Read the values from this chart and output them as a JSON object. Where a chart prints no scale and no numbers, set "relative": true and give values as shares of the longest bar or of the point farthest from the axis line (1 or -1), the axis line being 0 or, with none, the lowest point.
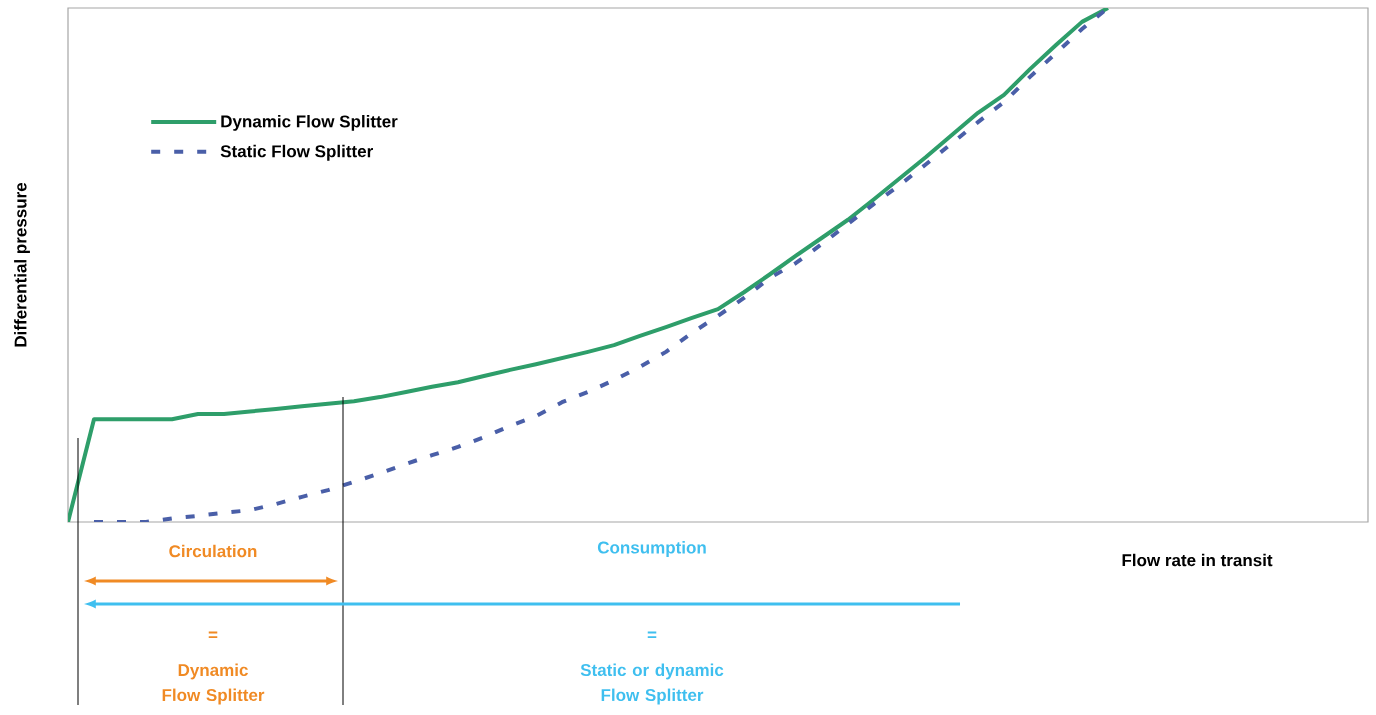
{
  "chart_data": {
    "type": "line",
    "relative": true,
    "xlabel": "Flow rate in transit",
    "ylabel": "Differential pressure",
    "legend": "top left",
    "categories": [
      null,
      null,
      null,
      null,
      null,
      null,
      null,
      null,
      null,
      null,
      null,
      null,
      null,
      null,
      null,
      null,
      null,
      null,
      null,
      null,
      null,
      null,
      null,
      null,
      null,
      null,
      null,
      null,
      null,
      null,
      null,
      null,
      null,
      null,
      null,
      null,
      null,
      null,
      null,
      null,
      null,
      null,
      null,
      null,
      null,
      null,
      null,
      null,
      null,
      null,
      null
    ],
    "series": [
      {
        "name": "Dynamic Flow Splitter",
        "color": "#2e9e6a",
        "line_style": "solid",
        "values": [
          0,
          0.2,
          0.2,
          0.2,
          0.2,
          0.21,
          0.21,
          0.215,
          0.22,
          0.225,
          0.23,
          0.235,
          0.243,
          0.253,
          0.263,
          0.272,
          0.284,
          0.296,
          0.307,
          0.319,
          0.331,
          0.344,
          0.362,
          0.379,
          0.397,
          0.414,
          0.447,
          0.482,
          0.518,
          0.553,
          0.588,
          0.628,
          0.669,
          0.71,
          0.753,
          0.796,
          0.831,
          0.881,
          0.928,
          0.973,
          1,
          null,
          null,
          null,
          null,
          null,
          null,
          null,
          null,
          null,
          null
        ]
      },
      {
        "name": "Static Flow Splitter",
        "color": "#4a5fa8",
        "line_style": "dashed",
        "values": [
          null,
          0,
          0,
          0,
          0.007,
          0.012,
          0.018,
          0.023,
          0.035,
          0.049,
          0.062,
          0.078,
          0.095,
          0.113,
          0.13,
          0.146,
          0.165,
          0.187,
          0.206,
          0.233,
          0.253,
          0.276,
          0.302,
          0.331,
          0.368,
          0.401,
          0.436,
          0.475,
          0.504,
          0.541,
          0.58,
          0.619,
          0.656,
          0.696,
          0.737,
          0.778,
          0.817,
          0.866,
          0.912,
          0.959,
          1,
          null,
          null,
          null,
          null,
          null,
          null,
          null,
          null,
          null,
          null
        ]
      }
    ],
    "annotations": [
      "Circulation",
      "Consumption",
      "=",
      "Dynamic Flow Splitter",
      "=",
      "Static or dynamic Flow Splitter"
    ]
  }
}
